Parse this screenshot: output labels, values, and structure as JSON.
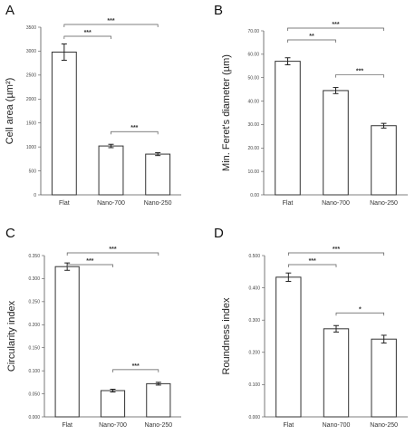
{
  "chart_data": [
    {
      "type": "bar",
      "panel": "A",
      "ylabel": "Cell area (µm²)",
      "categories": [
        "Flat",
        "Nano-700",
        "Nano-250"
      ],
      "values": [
        2980,
        1020,
        850
      ],
      "errors": [
        170,
        35,
        30
      ],
      "ylim": [
        0,
        3500
      ],
      "yticks": [
        "0",
        "500",
        "1000",
        "1500",
        "2000",
        "2500",
        "3000",
        "3500"
      ],
      "ytick_values": [
        0,
        500,
        1000,
        1500,
        2000,
        2500,
        3000,
        3500
      ],
      "significance": [
        {
          "from": 0,
          "to": 1,
          "label": "***",
          "level": 1
        },
        {
          "from": 0,
          "to": 2,
          "label": "***",
          "level": 2
        },
        {
          "from": 1,
          "to": 2,
          "label": "***",
          "level": 0
        }
      ]
    },
    {
      "type": "bar",
      "panel": "B",
      "ylabel": "Min. Feret's diameter (µm)",
      "categories": [
        "Flat",
        "Nano-700",
        "Nano-250"
      ],
      "values": [
        57,
        44.5,
        29.5
      ],
      "errors": [
        1.5,
        1.3,
        1.0
      ],
      "ylim": [
        0,
        70
      ],
      "yticks": [
        "0.00",
        "10.00",
        "20.00",
        "30.00",
        "40.00",
        "50.00",
        "60.00",
        "70.00"
      ],
      "ytick_values": [
        0,
        10,
        20,
        30,
        40,
        50,
        60,
        70
      ],
      "significance": [
        {
          "from": 0,
          "to": 1,
          "label": "**",
          "level": 1
        },
        {
          "from": 0,
          "to": 2,
          "label": "***",
          "level": 2
        },
        {
          "from": 1,
          "to": 2,
          "label": "***",
          "level": 0
        }
      ]
    },
    {
      "type": "bar",
      "panel": "C",
      "ylabel": "Circularity index",
      "categories": [
        "Flat",
        "Nano-700",
        "Nano-250"
      ],
      "values": [
        0.326,
        0.057,
        0.072
      ],
      "errors": [
        0.008,
        0.003,
        0.003
      ],
      "ylim": [
        0,
        0.35
      ],
      "yticks": [
        "0.000",
        "0.050",
        "0.100",
        "0.150",
        "0.200",
        "0.250",
        "0.300",
        "0.350"
      ],
      "ytick_values": [
        0,
        0.05,
        0.1,
        0.15,
        0.2,
        0.25,
        0.3,
        0.35
      ],
      "significance": [
        {
          "from": 0,
          "to": 1,
          "label": "***",
          "level": 1
        },
        {
          "from": 0,
          "to": 2,
          "label": "***",
          "level": 2
        },
        {
          "from": 1,
          "to": 2,
          "label": "***",
          "level": 0
        }
      ]
    },
    {
      "type": "bar",
      "panel": "D",
      "ylabel": "Roundness index",
      "categories": [
        "Flat",
        "Nano-700",
        "Nano-250"
      ],
      "values": [
        0.433,
        0.273,
        0.241
      ],
      "errors": [
        0.013,
        0.01,
        0.012
      ],
      "ylim": [
        0,
        0.5
      ],
      "yticks": [
        "0.000",
        "0.100",
        "0.200",
        "0.300",
        "0.400",
        "0.500"
      ],
      "ytick_values": [
        0,
        0.1,
        0.2,
        0.3,
        0.4,
        0.5
      ],
      "significance": [
        {
          "from": 0,
          "to": 1,
          "label": "***",
          "level": 1
        },
        {
          "from": 0,
          "to": 2,
          "label": "***",
          "level": 2
        },
        {
          "from": 1,
          "to": 2,
          "label": "*",
          "level": 0
        }
      ]
    }
  ],
  "bar_color": "#ffffff",
  "line_color": "#333333"
}
